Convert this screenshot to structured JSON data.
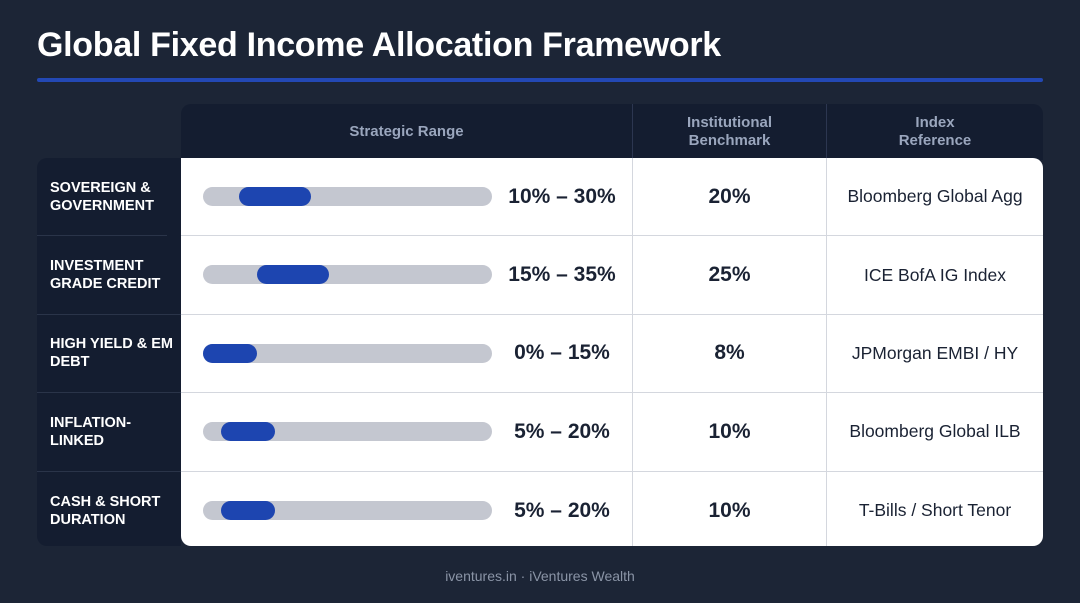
{
  "title": "Global Fixed Income Allocation Framework",
  "header": {
    "range": "Strategic Range",
    "benchmark": "Institutional Benchmark",
    "index": "Index Reference"
  },
  "rows": [
    {
      "label": "Sovereign & Government",
      "range": "10% – 30%",
      "min": 10,
      "max": 30,
      "benchmark": "20%",
      "index": "Bloomberg Global Agg"
    },
    {
      "label": "Investment Grade Credit",
      "range": "15% – 35%",
      "min": 15,
      "max": 35,
      "benchmark": "25%",
      "index": "ICE BofA IG Index"
    },
    {
      "label": "High Yield & EM Debt",
      "range": "0% – 15%",
      "min": 0,
      "max": 15,
      "benchmark": "8%",
      "index": "JPMorgan EMBI / HY"
    },
    {
      "label": "Inflation-Linked",
      "range": "5% – 20%",
      "min": 5,
      "max": 20,
      "benchmark": "10%",
      "index": "Bloomberg Global ILB"
    },
    {
      "label": "Cash & Short Duration",
      "range": "5% – 20%",
      "min": 5,
      "max": 20,
      "benchmark": "10%",
      "index": "T-Bills / Short Tenor"
    }
  ],
  "footer": "iventures.in · iVentures Wealth",
  "colors": {
    "accent": "#1d45b0",
    "track": "#c4c7d0",
    "background": "#1c2536"
  }
}
